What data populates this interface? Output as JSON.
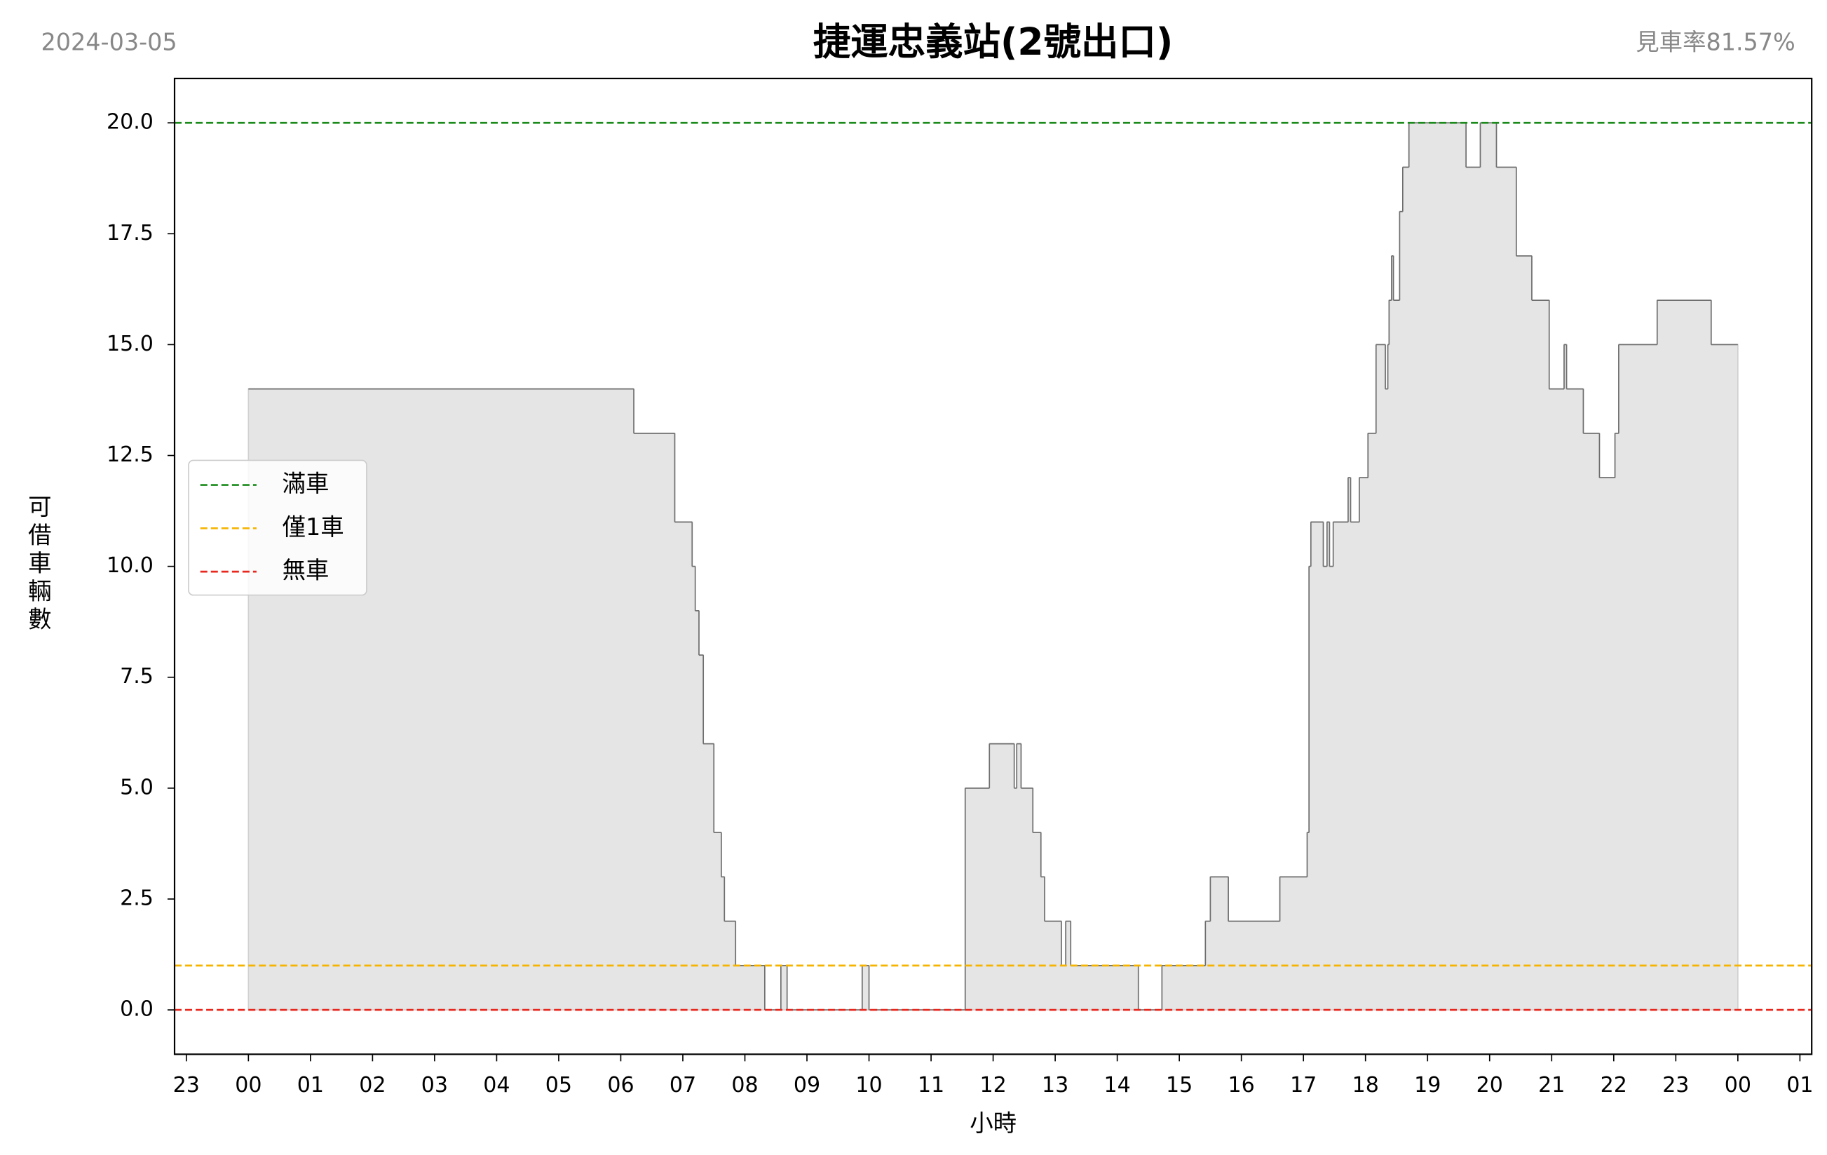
{
  "chart_data": {
    "type": "line",
    "drawstyle": "steps-post",
    "date": "2024-03-05",
    "title": "捷運忠義站(2號出口)",
    "rate": "見車率81.57%",
    "x_label": "小時",
    "y_label": "可借車輛數",
    "color": "#6e6e6e",
    "fill_color": "#e5e5e5",
    "x": [
      0,
      6.21,
      6.87,
      7.15,
      7.2,
      7.26,
      7.33,
      7.5,
      7.62,
      7.67,
      7.85,
      8.32,
      8.58,
      8.68,
      9.89,
      10.0,
      11.55,
      11.94,
      12.34,
      12.38,
      12.45,
      12.64,
      12.77,
      12.83,
      13.1,
      13.17,
      13.25,
      14.34,
      14.72,
      15.42,
      15.5,
      15.79,
      16.62,
      17.06,
      17.09,
      17.12,
      17.32,
      17.38,
      17.42,
      17.48,
      17.72,
      17.76,
      17.9,
      18.04,
      18.17,
      18.32,
      18.36,
      18.38,
      18.42,
      18.45,
      18.55,
      18.6,
      18.7,
      19.62,
      19.85,
      20.11,
      20.43,
      20.68,
      20.96,
      21.2,
      21.24,
      21.51,
      21.77,
      22.02,
      22.08,
      22.7,
      23.57,
      24.0
    ],
    "values": [
      14,
      13,
      11,
      10,
      9,
      8,
      6,
      4,
      3,
      2,
      1,
      0,
      1,
      0,
      1,
      0,
      5,
      6,
      5,
      6,
      5,
      4,
      3,
      2,
      1,
      2,
      1,
      0,
      1,
      2,
      3,
      2,
      3,
      4,
      10,
      11,
      10,
      11,
      10,
      11,
      12,
      11,
      12,
      13,
      15,
      14,
      15,
      16,
      17,
      16,
      18,
      19,
      20,
      19,
      20,
      19,
      17,
      16,
      14,
      15,
      14,
      13,
      12,
      13,
      15,
      16,
      15,
      15
    ],
    "reference_lines": [
      {
        "name": "滿車",
        "color": "#1a8a1a",
        "value": 20
      },
      {
        "name": "僅1車",
        "color": "#f5b400",
        "value": 1
      },
      {
        "name": "無車",
        "color": "#e8281e",
        "value": 0
      }
    ],
    "legend": "center left",
    "xlim": [
      -1.19,
      25.19
    ],
    "xticks": [
      {
        "value": -1,
        "label": "23"
      },
      {
        "value": 0,
        "label": "00"
      },
      {
        "value": 1,
        "label": "01"
      },
      {
        "value": 2,
        "label": "02"
      },
      {
        "value": 3,
        "label": "03"
      },
      {
        "value": 4,
        "label": "04"
      },
      {
        "value": 5,
        "label": "05"
      },
      {
        "value": 6,
        "label": "06"
      },
      {
        "value": 7,
        "label": "07"
      },
      {
        "value": 8,
        "label": "08"
      },
      {
        "value": 9,
        "label": "09"
      },
      {
        "value": 10,
        "label": "10"
      },
      {
        "value": 11,
        "label": "11"
      },
      {
        "value": 12,
        "label": "12"
      },
      {
        "value": 13,
        "label": "13"
      },
      {
        "value": 14,
        "label": "14"
      },
      {
        "value": 15,
        "label": "15"
      },
      {
        "value": 16,
        "label": "16"
      },
      {
        "value": 17,
        "label": "17"
      },
      {
        "value": 18,
        "label": "18"
      },
      {
        "value": 19,
        "label": "19"
      },
      {
        "value": 20,
        "label": "20"
      },
      {
        "value": 21,
        "label": "21"
      },
      {
        "value": 22,
        "label": "22"
      },
      {
        "value": 23,
        "label": "23"
      },
      {
        "value": 24,
        "label": "00"
      },
      {
        "value": 25,
        "label": "01"
      }
    ],
    "ylim": [
      -1,
      21
    ],
    "yticks": [
      {
        "value": 0,
        "label": "0.0"
      },
      {
        "value": 2.5,
        "label": "2.5"
      },
      {
        "value": 5,
        "label": "5.0"
      },
      {
        "value": 7.5,
        "label": "7.5"
      },
      {
        "value": 10,
        "label": "10.0"
      },
      {
        "value": 12.5,
        "label": "12.5"
      },
      {
        "value": 15,
        "label": "15.0"
      },
      {
        "value": 17.5,
        "label": "17.5"
      },
      {
        "value": 20,
        "label": "20.0"
      }
    ]
  }
}
